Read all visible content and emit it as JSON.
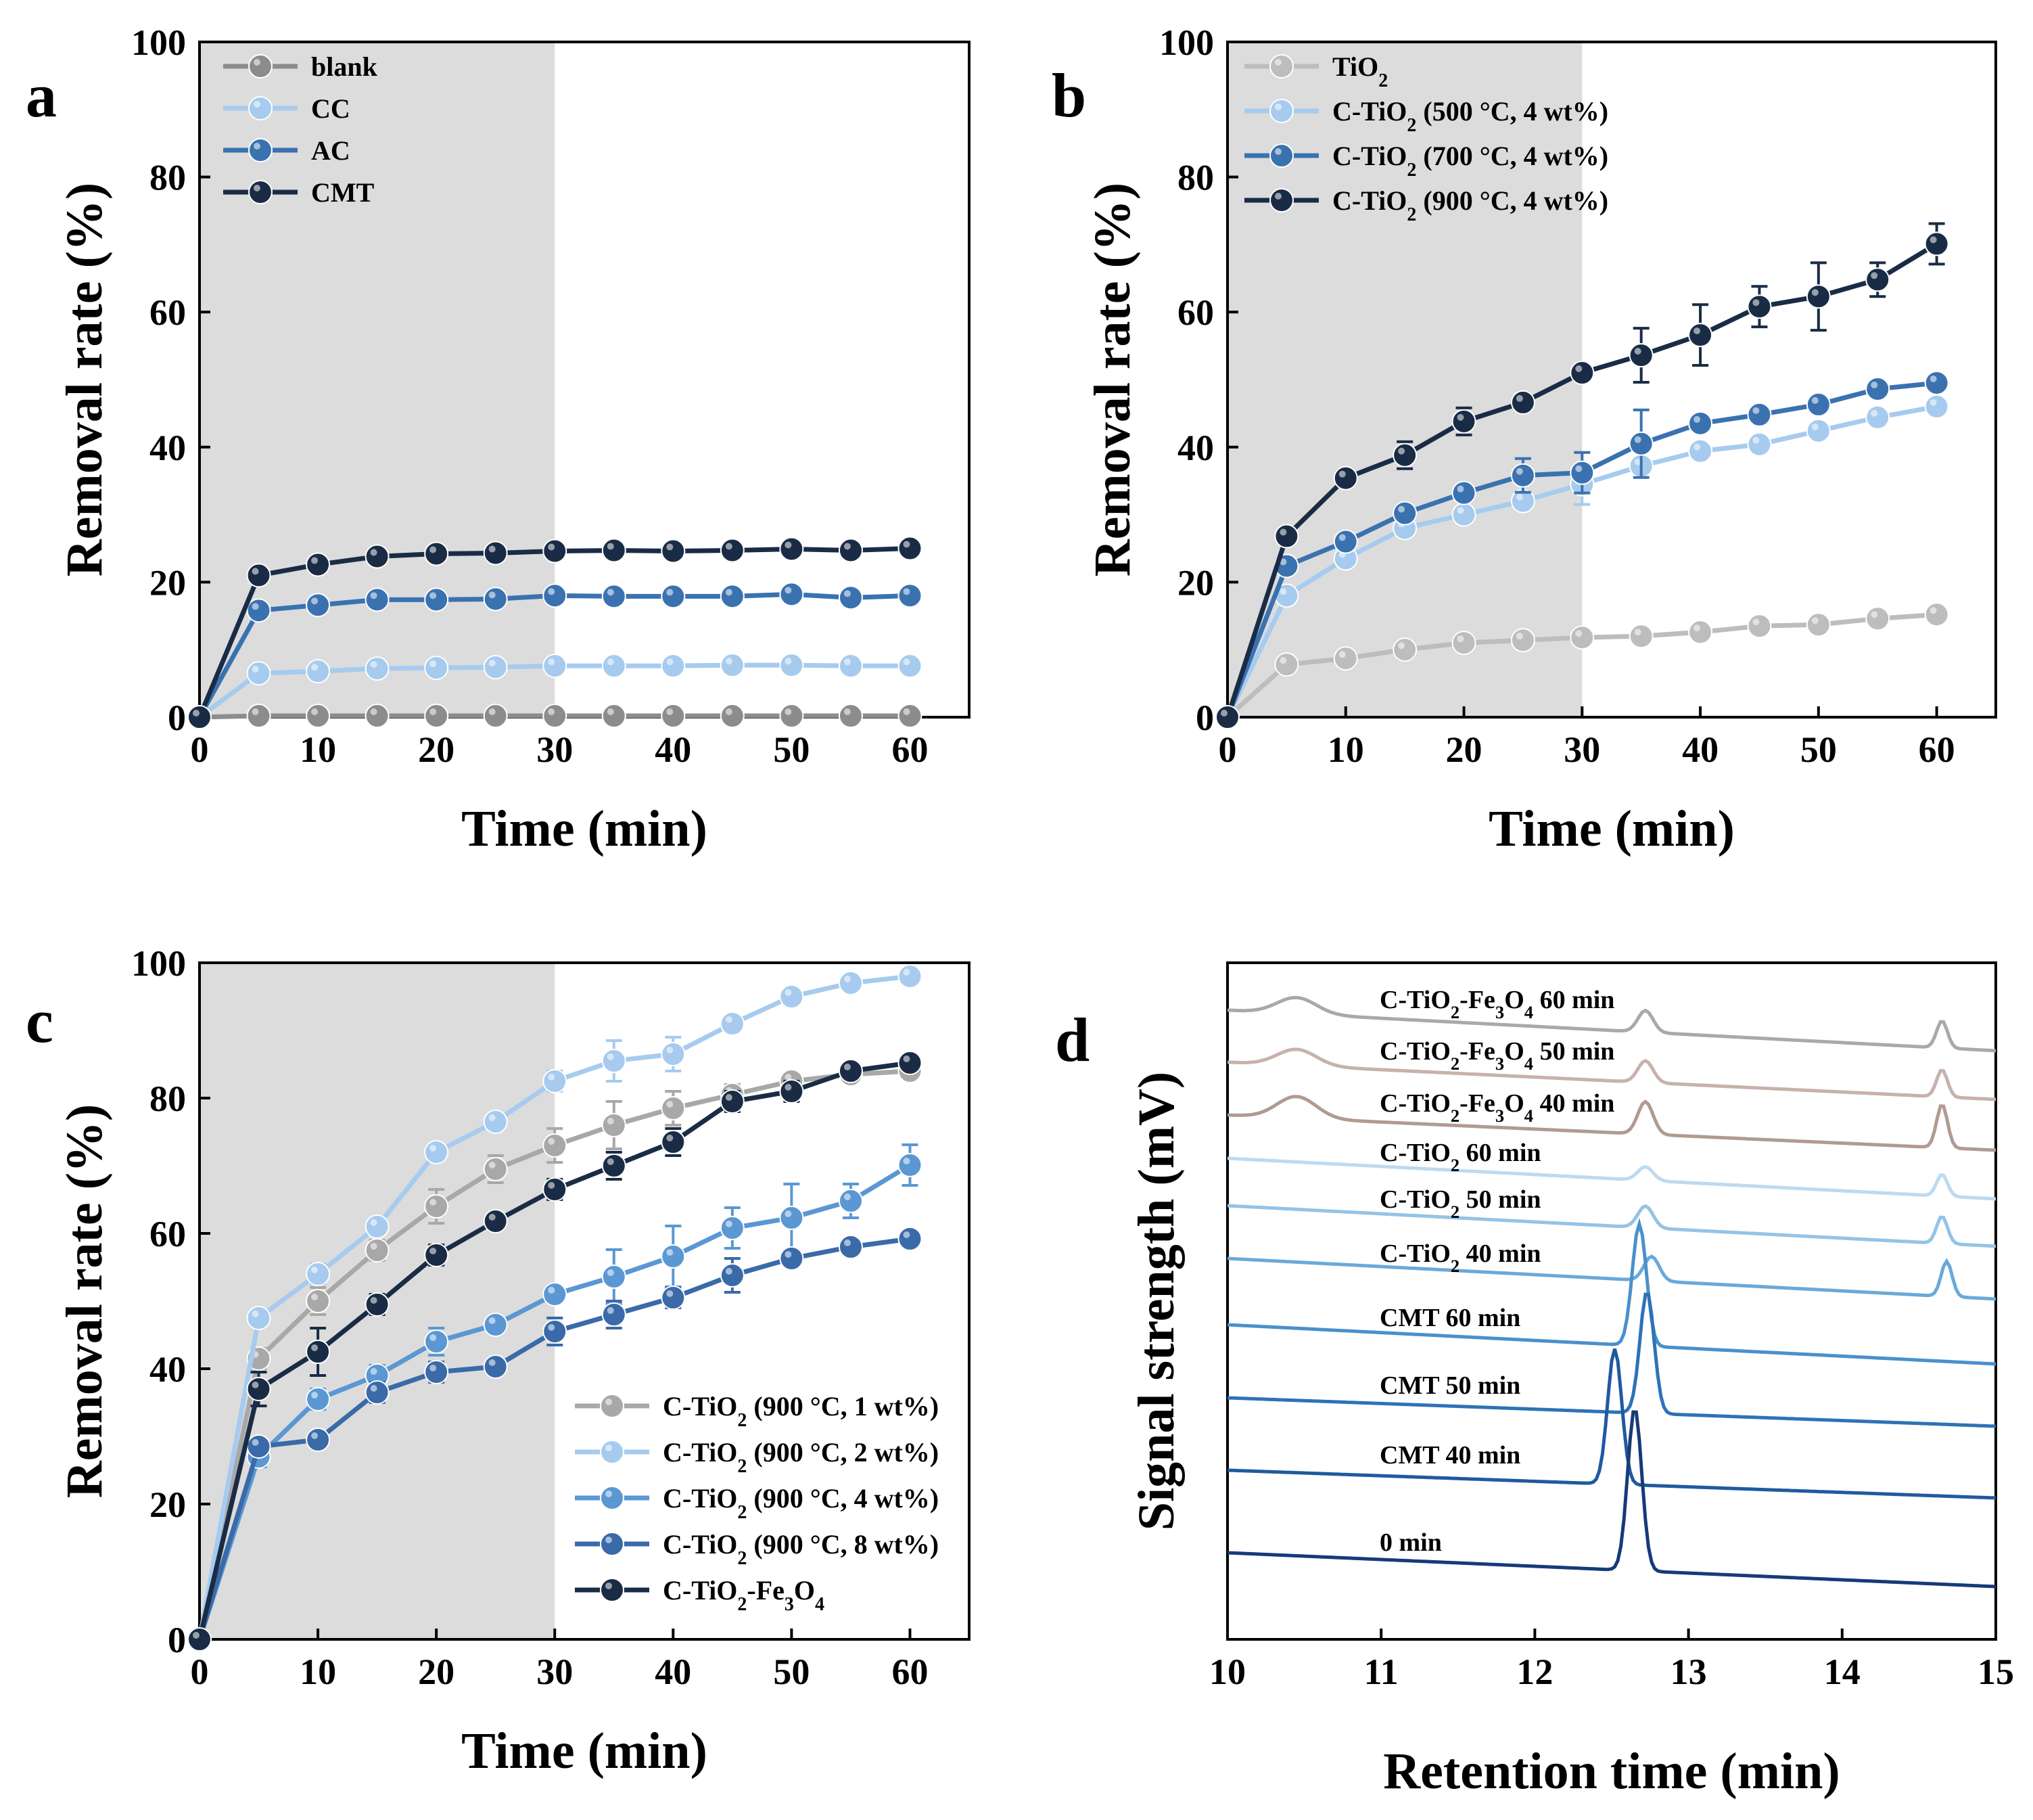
{
  "chart_data": [
    {
      "panel": "a",
      "type": "line",
      "xlabel": "Time  (min)",
      "ylabel": "Removal rate (%)",
      "xlim": [
        0,
        65
      ],
      "ylim": [
        0,
        100
      ],
      "xticks": [
        0,
        10,
        20,
        30,
        40,
        50,
        60
      ],
      "yticks": [
        0,
        20,
        40,
        60,
        80,
        100
      ],
      "shaded_region": [
        0,
        30
      ],
      "legend_position": "top-left",
      "x": [
        0,
        5,
        10,
        15,
        20,
        25,
        30,
        35,
        40,
        45,
        50,
        55,
        60
      ],
      "series": [
        {
          "name": "blank",
          "color": "#8c8c8c",
          "values": [
            0,
            0.2,
            0.2,
            0.2,
            0.2,
            0.2,
            0.2,
            0.2,
            0.2,
            0.2,
            0.2,
            0.2,
            0.2
          ]
        },
        {
          "name": "CC",
          "color": "#a6cbee",
          "values": [
            0,
            6.5,
            6.8,
            7.2,
            7.3,
            7.4,
            7.6,
            7.6,
            7.6,
            7.7,
            7.7,
            7.6,
            7.6
          ]
        },
        {
          "name": "AC",
          "color": "#3a72b0",
          "values": [
            0,
            15.8,
            16.6,
            17.4,
            17.4,
            17.5,
            18,
            17.9,
            17.9,
            17.9,
            18.2,
            17.7,
            18
          ]
        },
        {
          "name": "CMT",
          "color": "#1a2c45",
          "values": [
            0,
            21,
            22.6,
            23.8,
            24.2,
            24.3,
            24.6,
            24.7,
            24.6,
            24.7,
            24.9,
            24.7,
            25
          ]
        }
      ]
    },
    {
      "panel": "b",
      "type": "line",
      "xlabel": "Time  (min)",
      "ylabel": "Removal rate (%)",
      "xlim": [
        0,
        65
      ],
      "ylim": [
        0,
        100
      ],
      "xticks": [
        0,
        10,
        20,
        30,
        40,
        50,
        60
      ],
      "yticks": [
        0,
        20,
        40,
        60,
        80,
        100
      ],
      "shaded_region": [
        0,
        30
      ],
      "legend_position": "top-left",
      "x": [
        0,
        5,
        10,
        15,
        20,
        25,
        30,
        35,
        40,
        45,
        50,
        55,
        60
      ],
      "series": [
        {
          "name": "TiO2",
          "label_main": "TiO",
          "label_sub": "2",
          "label_rest": "",
          "color": "#bdbdbd",
          "values": [
            0,
            7.8,
            8.7,
            10,
            11,
            11.4,
            11.8,
            12,
            12.6,
            13.5,
            13.7,
            14.6,
            15.2
          ],
          "errors": [
            0,
            0.8,
            0.8,
            0.8,
            0.8,
            0.8,
            0.8,
            0.8,
            0.8,
            0.8,
            0.8,
            0.8,
            0.8
          ]
        },
        {
          "name": "C-TiO2 (500 °C, 4 wt%)",
          "label_main": "C-TiO",
          "label_sub": "2",
          "label_rest": " (500 °C, 4 wt%)",
          "color": "#a6cbee",
          "values": [
            0,
            18,
            23.5,
            28,
            30,
            32,
            34.5,
            37.2,
            39.4,
            40.4,
            42.4,
            44.4,
            46
          ],
          "errors": [
            0,
            1,
            1,
            1,
            1,
            1,
            3,
            1,
            1,
            1,
            1,
            1,
            1
          ]
        },
        {
          "name": "C-TiO2 (700 °C, 4 wt%)",
          "label_main": "C-TiO",
          "label_sub": "2",
          "label_rest": " (700 °C, 4 wt%)",
          "color": "#3a72b0",
          "values": [
            0,
            22.4,
            26,
            30.2,
            33.2,
            35.8,
            36.2,
            40.5,
            43.5,
            44.8,
            46.3,
            48.6,
            49.5
          ],
          "errors": [
            0,
            1,
            1,
            1,
            1,
            2.5,
            3,
            5,
            1,
            1,
            1,
            1,
            1
          ]
        },
        {
          "name": "C-TiO2 (900 °C, 4 wt%)",
          "label_main": "C-TiO",
          "label_sub": "2",
          "label_rest": " (900 °C, 4 wt%)",
          "color": "#1a2c45",
          "values": [
            0,
            26.8,
            35.4,
            38.8,
            43.8,
            46.6,
            51,
            53.6,
            56.6,
            60.8,
            62.3,
            64.8,
            70.1
          ],
          "errors": [
            0,
            1,
            1,
            2,
            2,
            1,
            1,
            4,
            4.5,
            3,
            5,
            2.5,
            3
          ]
        }
      ]
    },
    {
      "panel": "c",
      "type": "line",
      "xlabel": "Time (min)",
      "ylabel": "Removal rate (%)",
      "xlim": [
        0,
        65
      ],
      "ylim": [
        0,
        100
      ],
      "xticks": [
        0,
        10,
        20,
        30,
        40,
        50,
        60
      ],
      "yticks": [
        0,
        20,
        40,
        60,
        80,
        100
      ],
      "shaded_region": [
        0,
        30
      ],
      "legend_position": "bottom-right",
      "x": [
        0,
        5,
        10,
        15,
        20,
        25,
        30,
        35,
        40,
        45,
        50,
        55,
        60
      ],
      "series": [
        {
          "name": "C-TiO2 (900 °C, 1 wt%)",
          "label_main": "C-TiO",
          "label_sub": "2",
          "label_rest": " (900 °C, 1 wt%)",
          "color": "#a8a8a8",
          "values": [
            0,
            41.5,
            50,
            57.5,
            64,
            69.5,
            73,
            76,
            78.5,
            80.5,
            82.5,
            83.5,
            84
          ],
          "errors": [
            0,
            1.5,
            2,
            1.5,
            2.5,
            2,
            2.5,
            3.5,
            2.5,
            1.5,
            1,
            1,
            1
          ]
        },
        {
          "name": "C-TiO2 (900 °C, 2 wt%)",
          "label_main": "C-TiO",
          "label_sub": "2",
          "label_rest": " (900 °C, 2 wt%)",
          "color": "#a6cbee",
          "values": [
            0,
            47.5,
            54,
            61,
            72,
            76.5,
            82.5,
            85.5,
            86.5,
            91,
            95,
            97,
            98
          ],
          "errors": [
            0,
            1,
            1.5,
            1,
            1,
            1,
            1.5,
            3,
            2.5,
            1,
            1,
            1,
            1
          ]
        },
        {
          "name": "C-TiO2 (900 °C, 4 wt%)",
          "label_main": "C-TiO",
          "label_sub": "2",
          "label_rest": " (900 °C, 4 wt%)",
          "color": "#5b97d3",
          "values": [
            0,
            27,
            35.5,
            39,
            44,
            46.5,
            51,
            53.6,
            56.6,
            60.8,
            62.3,
            64.8,
            70.1
          ],
          "errors": [
            0,
            1.5,
            1.5,
            1.5,
            2,
            1,
            1,
            4,
            4.5,
            3,
            5,
            2.5,
            3
          ]
        },
        {
          "name": "C-TiO2 (900 °C, 8 wt%)",
          "label_main": "C-TiO",
          "label_sub": "2",
          "label_rest": " (900 °C, 8 wt%)",
          "color": "#3a6aa8",
          "values": [
            0,
            28.5,
            29.5,
            36.5,
            39.5,
            40.3,
            45.5,
            48,
            50.5,
            53.8,
            56.3,
            58,
            59.2
          ],
          "errors": [
            0,
            1,
            1,
            1.5,
            1.5,
            1,
            2,
            2,
            1.5,
            2.5,
            1,
            1,
            1
          ]
        },
        {
          "name": "C-TiO2-Fe3O4",
          "label_main": "C-TiO",
          "label_sub": "2",
          "label_rest": "-Fe",
          "label_sub2": "3",
          "label_rest2": "O",
          "label_sub3": "4",
          "color": "#1a2c45",
          "values": [
            0,
            37,
            42.5,
            49.5,
            56.8,
            61.8,
            66.5,
            70,
            73.5,
            79.5,
            81,
            84,
            85.2
          ],
          "errors": [
            0,
            2.5,
            3.5,
            1.5,
            1.5,
            1,
            1.5,
            2,
            2,
            1.5,
            1.5,
            1,
            1
          ]
        }
      ]
    },
    {
      "panel": "d",
      "type": "line",
      "xlabel": "Retention time (min)",
      "ylabel": "Signal strength (mV)",
      "xlim": [
        10,
        15
      ],
      "xticks": [
        10,
        11,
        12,
        13,
        14,
        15
      ],
      "series": [
        {
          "name": "C-TiO2-Fe3O4 60 min",
          "label_main": "C-TiO",
          "label_sub": "2",
          "label_rest": "-Fe",
          "label_sub2": "3",
          "label_rest2": "O",
          "label_sub3": "4",
          "label_rest3": " 60 min",
          "color": "#a9a9a9",
          "peaks": [
            {
              "x": 10.45,
              "h": 0.6,
              "w": 0.18
            },
            {
              "x": 12.72,
              "h": 0.8,
              "w": 0.07
            },
            {
              "x": 14.65,
              "h": 1.0,
              "w": 0.05
            }
          ]
        },
        {
          "name": "C-TiO2-Fe3O4 50 min",
          "label_main": "C-TiO",
          "label_sub": "2",
          "label_rest": "-Fe",
          "label_sub2": "3",
          "label_rest2": "O",
          "label_sub3": "4",
          "label_rest3": " 50 min",
          "color": "#c7b2ab",
          "peaks": [
            {
              "x": 10.45,
              "h": 0.6,
              "w": 0.18
            },
            {
              "x": 12.72,
              "h": 0.8,
              "w": 0.07
            },
            {
              "x": 14.65,
              "h": 1.0,
              "w": 0.05
            }
          ]
        },
        {
          "name": "C-TiO2-Fe3O4 40 min",
          "label_main": "C-TiO",
          "label_sub": "2",
          "label_rest": "-Fe",
          "label_sub2": "3",
          "label_rest2": "O",
          "label_sub3": "4",
          "label_rest3": " 40 min",
          "color": "#b09b91",
          "peaks": [
            {
              "x": 10.45,
              "h": 0.8,
              "w": 0.18
            },
            {
              "x": 12.72,
              "h": 1.2,
              "w": 0.07
            },
            {
              "x": 14.65,
              "h": 1.6,
              "w": 0.05
            }
          ]
        },
        {
          "name": "C-TiO2 60 min",
          "label_main": "C-TiO",
          "label_sub": "2",
          "label_rest": " 60 min",
          "color": "#bcdaf0",
          "peaks": [
            {
              "x": 12.72,
              "h": 0.5,
              "w": 0.07
            },
            {
              "x": 14.65,
              "h": 0.8,
              "w": 0.05
            }
          ]
        },
        {
          "name": "C-TiO2 50 min",
          "label_main": "C-TiO",
          "label_sub": "2",
          "label_rest": " 50 min",
          "color": "#94c3e5",
          "peaks": [
            {
              "x": 12.72,
              "h": 0.8,
              "w": 0.07
            },
            {
              "x": 14.65,
              "h": 1.0,
              "w": 0.05
            }
          ]
        },
        {
          "name": "C-TiO2 40 min",
          "label_main": "C-TiO",
          "label_sub": "2",
          "label_rest": " 40 min",
          "color": "#6aa9d9",
          "peaks": [
            {
              "x": 12.76,
              "h": 0.9,
              "w": 0.07
            },
            {
              "x": 14.68,
              "h": 1.3,
              "w": 0.05
            }
          ]
        },
        {
          "name": "CMT 60 min",
          "label_main": "CMT 60 min",
          "color": "#4a90cc",
          "peaks": [
            {
              "x": 12.68,
              "h": 4.5,
              "w": 0.065
            }
          ]
        },
        {
          "name": "CMT 50 min",
          "label_main": "CMT 50 min",
          "color": "#2e72b6",
          "peaks": [
            {
              "x": 12.73,
              "h": 4.5,
              "w": 0.065
            }
          ]
        },
        {
          "name": "CMT 40 min",
          "label_main": "CMT 40 min",
          "color": "#1f5aa0",
          "peaks": [
            {
              "x": 12.52,
              "h": 5.0,
              "w": 0.065
            }
          ]
        },
        {
          "name": "0 min",
          "label_main": "0 min",
          "color": "#173a78",
          "peaks": [
            {
              "x": 12.65,
              "h": 6.0,
              "w": 0.065
            }
          ]
        }
      ]
    }
  ],
  "panel_letters": [
    "a",
    "b",
    "c",
    "d"
  ]
}
